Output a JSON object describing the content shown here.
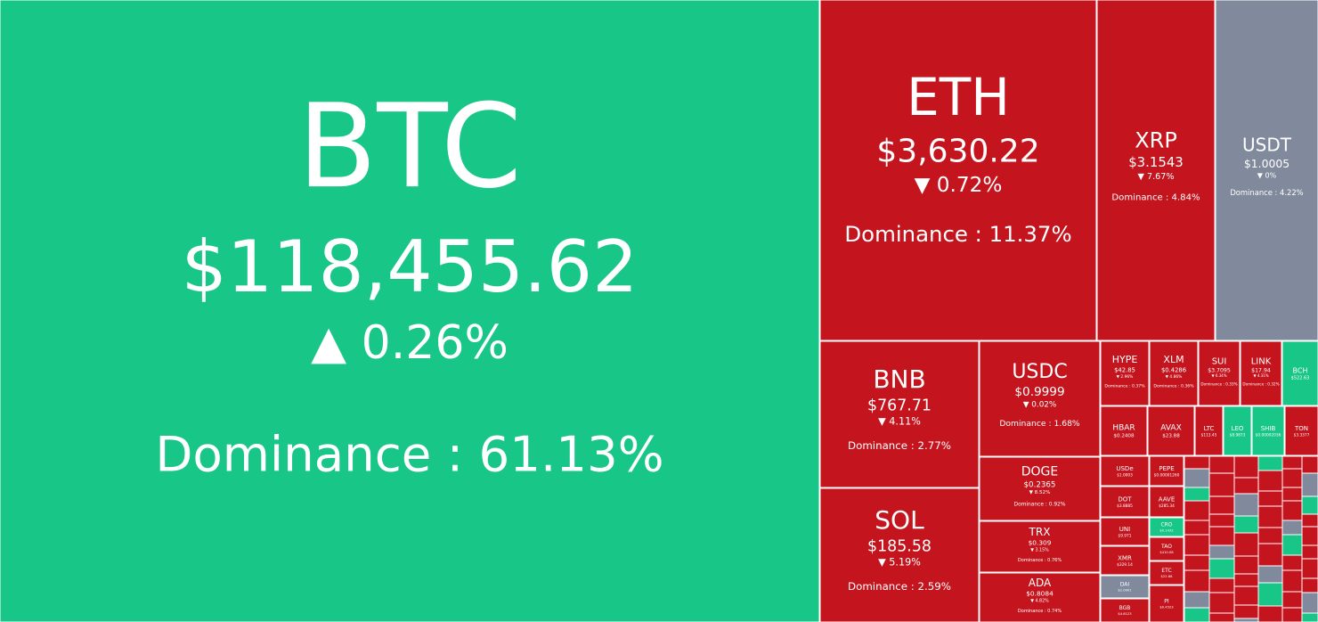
{
  "tiles": [
    {
      "symbol": "BTC",
      "price": "$118,455.62",
      "change": "▲ 0.26%",
      "dominance": "Dominance : 61.13%",
      "color": "#18c787"
    },
    {
      "symbol": "ETH",
      "price": "$3,630.22",
      "change": "▼ 0.72%",
      "dominance": "Dominance : 11.37%",
      "color": "#c4151f"
    },
    {
      "symbol": "XRP",
      "price": "$3.1543",
      "change": "▼ 7.67%",
      "dominance": "Dominance : 4.84%",
      "color": "#c4151f"
    },
    {
      "symbol": "USDT",
      "price": "$1.0005",
      "change": "▼ 0%",
      "dominance": "Dominance : 4.22%",
      "color": "#808a9c"
    },
    {
      "symbol": "BNB",
      "price": "$767.71",
      "change": "▼ 4.11%",
      "dominance": "Dominance : 2.77%",
      "color": "#c4151f"
    },
    {
      "symbol": "SOL",
      "price": "$185.58",
      "change": "▼ 5.19%",
      "dominance": "Dominance : 2.59%",
      "color": "#c4151f"
    },
    {
      "symbol": "USDC",
      "price": "$0.9999",
      "change": "▼ 0.02%",
      "dominance": "Dominance : 1.68%",
      "color": "#c4151f"
    },
    {
      "symbol": "DOGE",
      "price": "$0.2365",
      "change": "▼ 8.52%",
      "dominance": "Dominance : 0.92%",
      "color": "#c4151f"
    },
    {
      "symbol": "TRX",
      "price": "$0.309",
      "change": "▼ 3.15%",
      "dominance": "Dominance : 0.76%",
      "color": "#c4151f"
    },
    {
      "symbol": "ADA",
      "price": "$0.8084",
      "change": "▼ 4.82%",
      "dominance": "Dominance : 0.74%",
      "color": "#c4151f"
    },
    {
      "symbol": "HYPE",
      "price": "$42.85",
      "change": "▼ 2.96%",
      "dominance": "Dominance : 0.37%",
      "color": "#c4151f"
    },
    {
      "symbol": "XLM",
      "price": "$0.4286",
      "change": "▼ 4.86%",
      "dominance": "Dominance : 0.36%",
      "color": "#c4151f"
    },
    {
      "symbol": "SUI",
      "price": "$3.7095",
      "change": "▼ 6.34%",
      "dominance": "Dominance : 0.33%",
      "color": "#c4151f"
    },
    {
      "symbol": "LINK",
      "price": "$17.94",
      "change": "▼ 4.31%",
      "dominance": "Dominance : 0.32%",
      "color": "#c4151f"
    },
    {
      "symbol": "BCH",
      "price": "$522.63",
      "color": "#18c787"
    },
    {
      "symbol": "HBAR",
      "price": "$0.2408",
      "color": "#c4151f"
    },
    {
      "symbol": "AVAX",
      "price": "$23.88",
      "color": "#c4151f"
    },
    {
      "symbol": "LTC",
      "price": "$113.45",
      "color": "#c4151f"
    },
    {
      "symbol": "LEO",
      "price": "$8.9873",
      "color": "#18c787"
    },
    {
      "symbol": "SHIB",
      "price": "$0.00002036",
      "color": "#18c787"
    },
    {
      "symbol": "TON",
      "price": "$3.3377",
      "color": "#c4151f"
    },
    {
      "symbol": "USDe",
      "price": "$1.0003",
      "color": "#c4151f"
    },
    {
      "symbol": "DOT",
      "price": "$3.8885",
      "color": "#c4151f"
    },
    {
      "symbol": "UNI",
      "price": "$9.971",
      "color": "#c4151f"
    },
    {
      "symbol": "XMR",
      "price": "$329.14",
      "color": "#c4151f"
    },
    {
      "symbol": "DAI",
      "price": "$1.0001",
      "color": "#808a9c"
    },
    {
      "symbol": "BGB",
      "price": "$4.6123",
      "color": "#c4151f"
    },
    {
      "symbol": "PEPE",
      "price": "$0.00001260",
      "color": "#c4151f"
    },
    {
      "symbol": "AAVE",
      "price": "$285.34",
      "color": "#c4151f"
    },
    {
      "symbol": "CRO",
      "price": "$0.1432",
      "color": "#18c787"
    },
    {
      "symbol": "TAO",
      "price": "$410.08",
      "color": "#c4151f"
    },
    {
      "symbol": "ETC",
      "price": "$22.68",
      "color": "#c4151f"
    },
    {
      "symbol": "PI",
      "price": "$0.4523",
      "color": "#c4151f"
    }
  ]
}
